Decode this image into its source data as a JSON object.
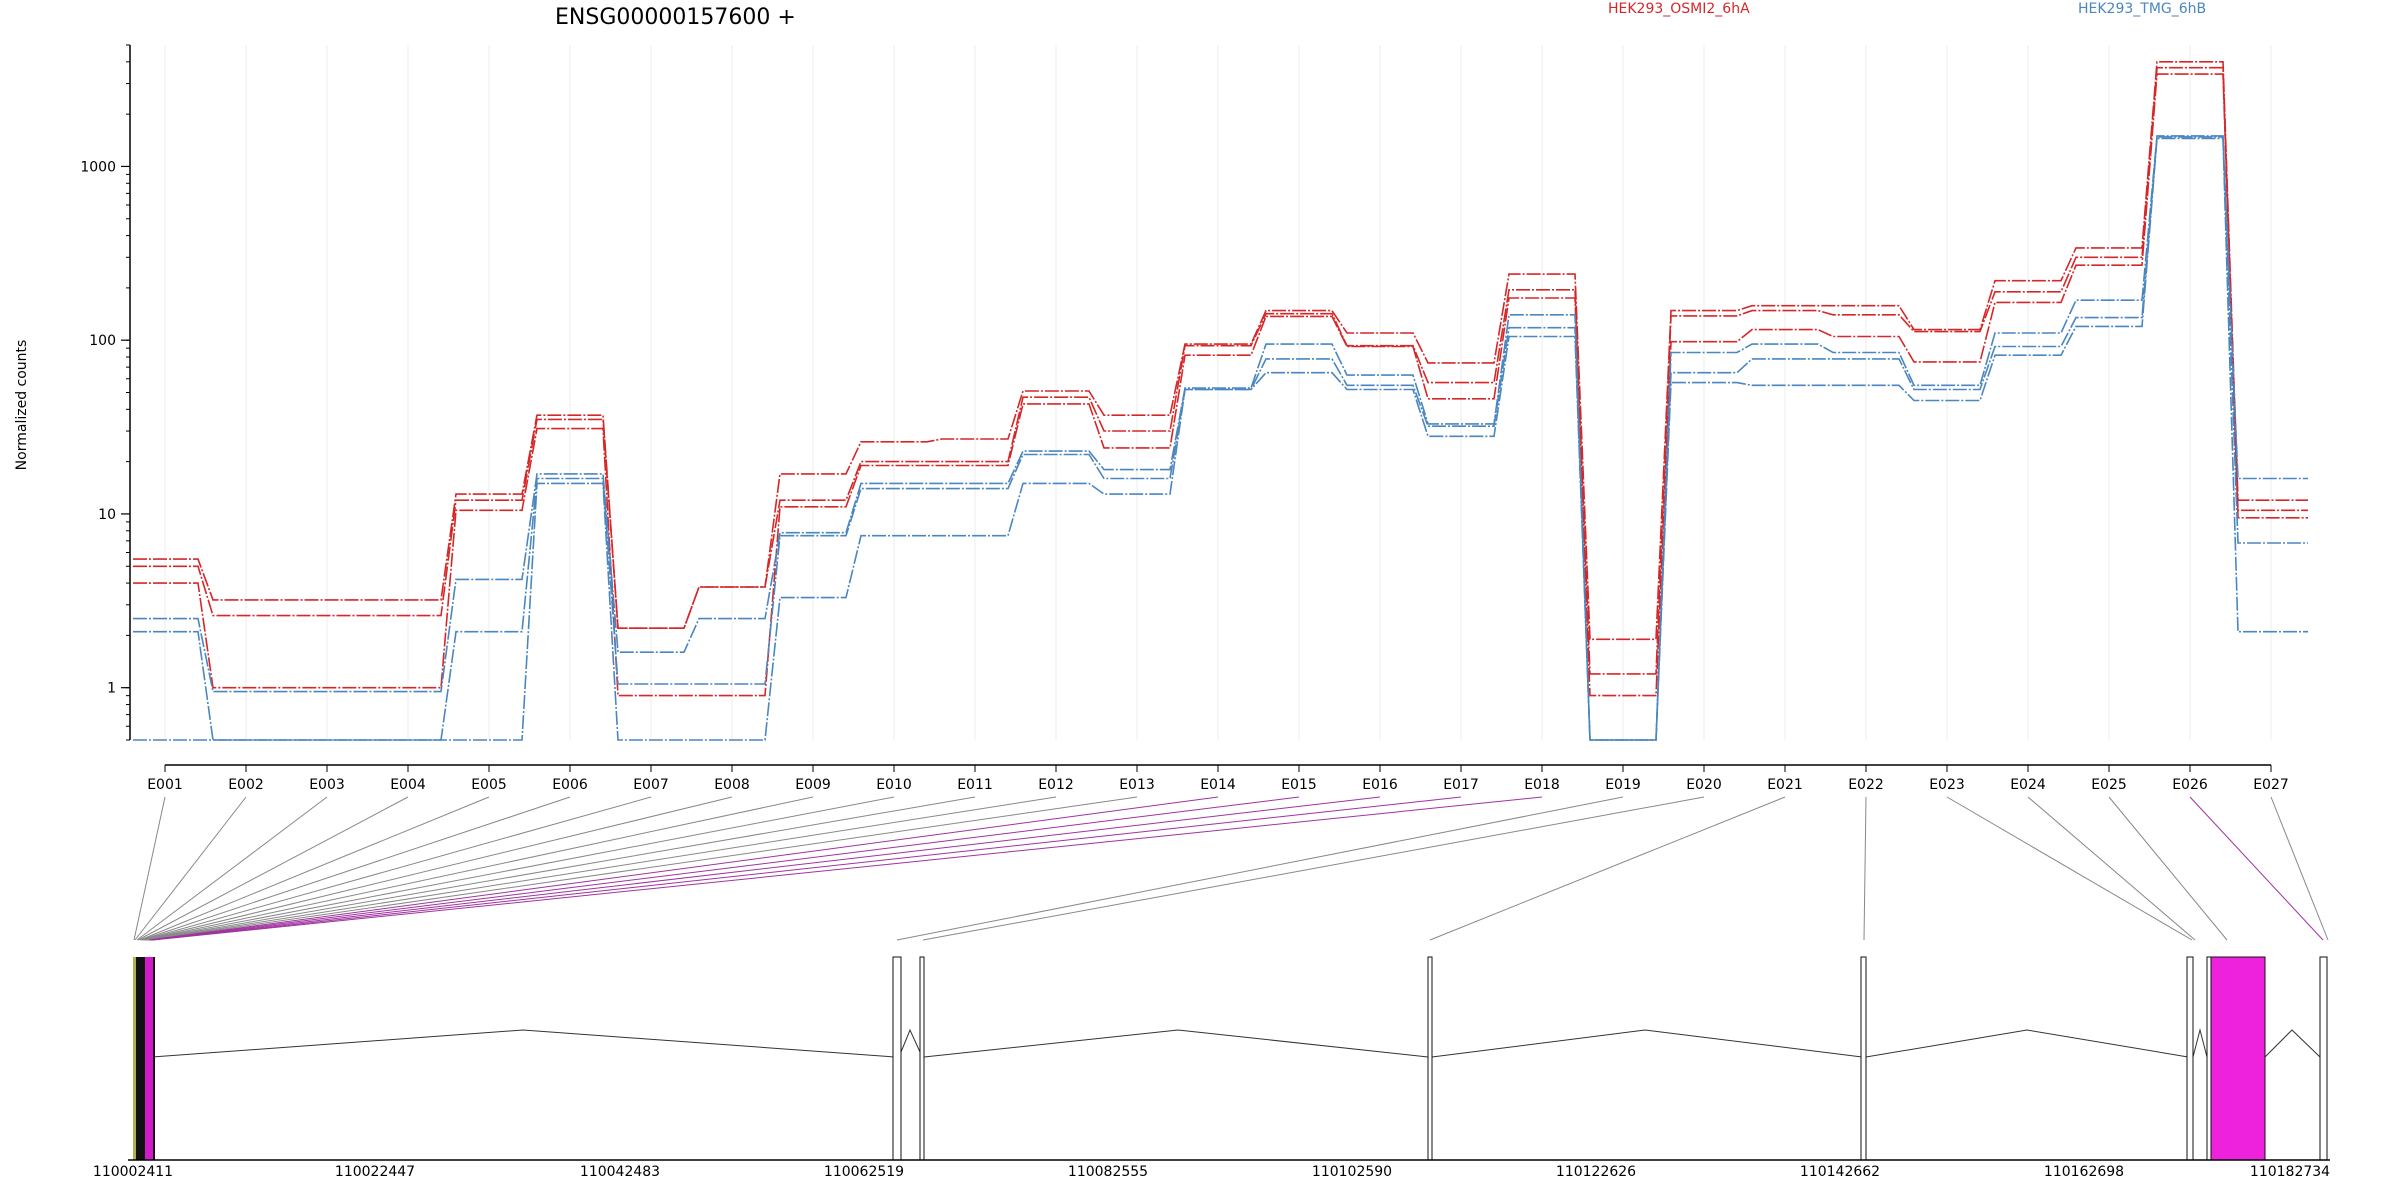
{
  "chart_data": {
    "type": "line",
    "title": "ENSG00000157600 +",
    "ylabel": "Normalized counts",
    "yscale": "log",
    "ylim": [
      0.5,
      5000
    ],
    "yticks": [
      {
        "v": 1,
        "label": "1"
      },
      {
        "v": 10,
        "label": "10"
      },
      {
        "v": 100,
        "label": "100"
      },
      {
        "v": 1000,
        "label": "1000"
      }
    ],
    "grid": true,
    "legend": [
      "HEK293_OSMI2_6hA",
      "HEK293_TMG_6hB"
    ],
    "categories": [
      "E001",
      "E002",
      "E003",
      "E004",
      "E005",
      "E006",
      "E007",
      "E008",
      "E009",
      "E010",
      "E011",
      "E012",
      "E013",
      "E014",
      "E015",
      "E016",
      "E017",
      "E018",
      "E019",
      "E020",
      "E021",
      "E022",
      "E023",
      "E024",
      "E025",
      "E026",
      "E027"
    ],
    "highlighted_exons": [
      "E014",
      "E015",
      "E016",
      "E017",
      "E018",
      "E026"
    ],
    "series": [
      {
        "group": "HEK293_OSMI2_6hA",
        "color": "#d62728",
        "values": [
          5.5,
          3.2,
          3.2,
          3.2,
          13,
          37,
          2.2,
          3.8,
          17,
          26,
          27,
          51,
          37,
          95,
          148,
          110,
          74,
          240,
          1.9,
          148,
          158,
          158,
          115,
          220,
          340,
          4000,
          12
        ]
      },
      {
        "group": "HEK293_OSMI2_6hA",
        "color": "#d62728",
        "values": [
          5.0,
          2.6,
          2.6,
          2.6,
          12,
          35,
          2.2,
          3.8,
          12,
          20,
          20,
          47,
          30,
          93,
          142,
          93,
          57,
          195,
          1.2,
          138,
          148,
          140,
          112,
          190,
          300,
          3700,
          10.5
        ]
      },
      {
        "group": "HEK293_OSMI2_6hA",
        "color": "#d62728",
        "values": [
          4.0,
          1.0,
          1.0,
          1.0,
          10.5,
          31,
          0.9,
          0.9,
          11,
          19,
          19,
          43,
          24,
          82,
          137,
          92,
          46,
          175,
          0.9,
          98,
          115,
          105,
          75,
          165,
          270,
          3400,
          9.5
        ]
      },
      {
        "group": "HEK293_TMG_6hB",
        "color": "#4a86c0",
        "values": [
          2.5,
          0.95,
          0.95,
          0.95,
          4.2,
          17,
          1.6,
          2.5,
          7.8,
          15,
          15,
          23,
          18,
          53,
          95,
          63,
          33,
          140,
          0.5,
          85,
          95,
          85,
          55,
          110,
          170,
          1500,
          16
        ]
      },
      {
        "group": "HEK293_TMG_6hB",
        "color": "#4a86c0",
        "values": [
          2.1,
          0.5,
          0.5,
          0.5,
          2.1,
          16,
          1.05,
          1.05,
          7.5,
          14,
          14,
          22,
          16,
          52,
          78,
          55,
          32,
          118,
          0.5,
          65,
          78,
          78,
          52,
          92,
          135,
          1480,
          6.8
        ]
      },
      {
        "group": "HEK293_TMG_6hB",
        "color": "#4a86c0",
        "values": [
          0.5,
          0.5,
          0.5,
          0.5,
          0.5,
          15,
          0.5,
          0.5,
          3.3,
          7.5,
          7.5,
          15,
          13,
          52,
          65,
          52,
          28,
          105,
          0.5,
          57,
          55,
          55,
          45,
          82,
          120,
          1450,
          2.1
        ]
      }
    ],
    "genome_axis_labels": [
      "110002411",
      "110022447",
      "110042483",
      "110062519",
      "110082555",
      "110102590",
      "110122626",
      "110142662",
      "110162698",
      "110182734"
    ]
  }
}
